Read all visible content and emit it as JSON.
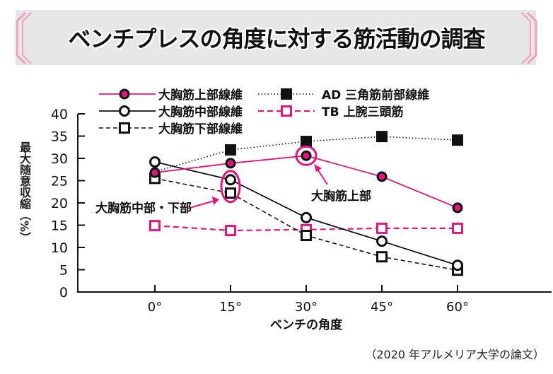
{
  "title": "ベンチプレスの角度に対する筋活動の調査",
  "source": "（2020 年アルメリア大学の論文）",
  "colors": {
    "pink": "#e0177f",
    "black": "#111111"
  },
  "chart_data": {
    "type": "line",
    "xlabel": "ベンチの角度",
    "ylabel": "最大随意収縮（%）",
    "x": [
      "0°",
      "15°",
      "30°",
      "45°",
      "60°"
    ],
    "ylim": [
      0,
      40
    ],
    "yticks": [
      0,
      5,
      10,
      15,
      20,
      25,
      30,
      35,
      40
    ],
    "legend_position": "top",
    "series": [
      {
        "name": "大胸筋上部線維",
        "marker": "filled-pink-circle",
        "line": "solid-pink",
        "values": [
          26.8,
          28.9,
          30.6,
          25.9,
          18.9
        ]
      },
      {
        "name": "大胸筋中部線維",
        "marker": "open-circle",
        "line": "solid-black",
        "values": [
          29.2,
          25.2,
          16.7,
          11.4,
          6.0
        ]
      },
      {
        "name": "大胸筋下部線維",
        "marker": "open-square",
        "line": "dashed-black",
        "values": [
          25.5,
          22.2,
          12.7,
          7.9,
          4.9
        ]
      },
      {
        "name": "AD 三角筋前部線維",
        "marker": "filled-square",
        "line": "dotted-black",
        "values": [
          27.0,
          31.9,
          33.8,
          34.9,
          34.1
        ]
      },
      {
        "name": "TB 上腕三頭筋",
        "marker": "open-pink-square",
        "line": "dashed-pink",
        "values": [
          14.9,
          13.8,
          14.0,
          14.3,
          14.3
        ]
      }
    ],
    "annotations": [
      "大胸筋上部",
      "大胸筋中部・下部"
    ]
  }
}
